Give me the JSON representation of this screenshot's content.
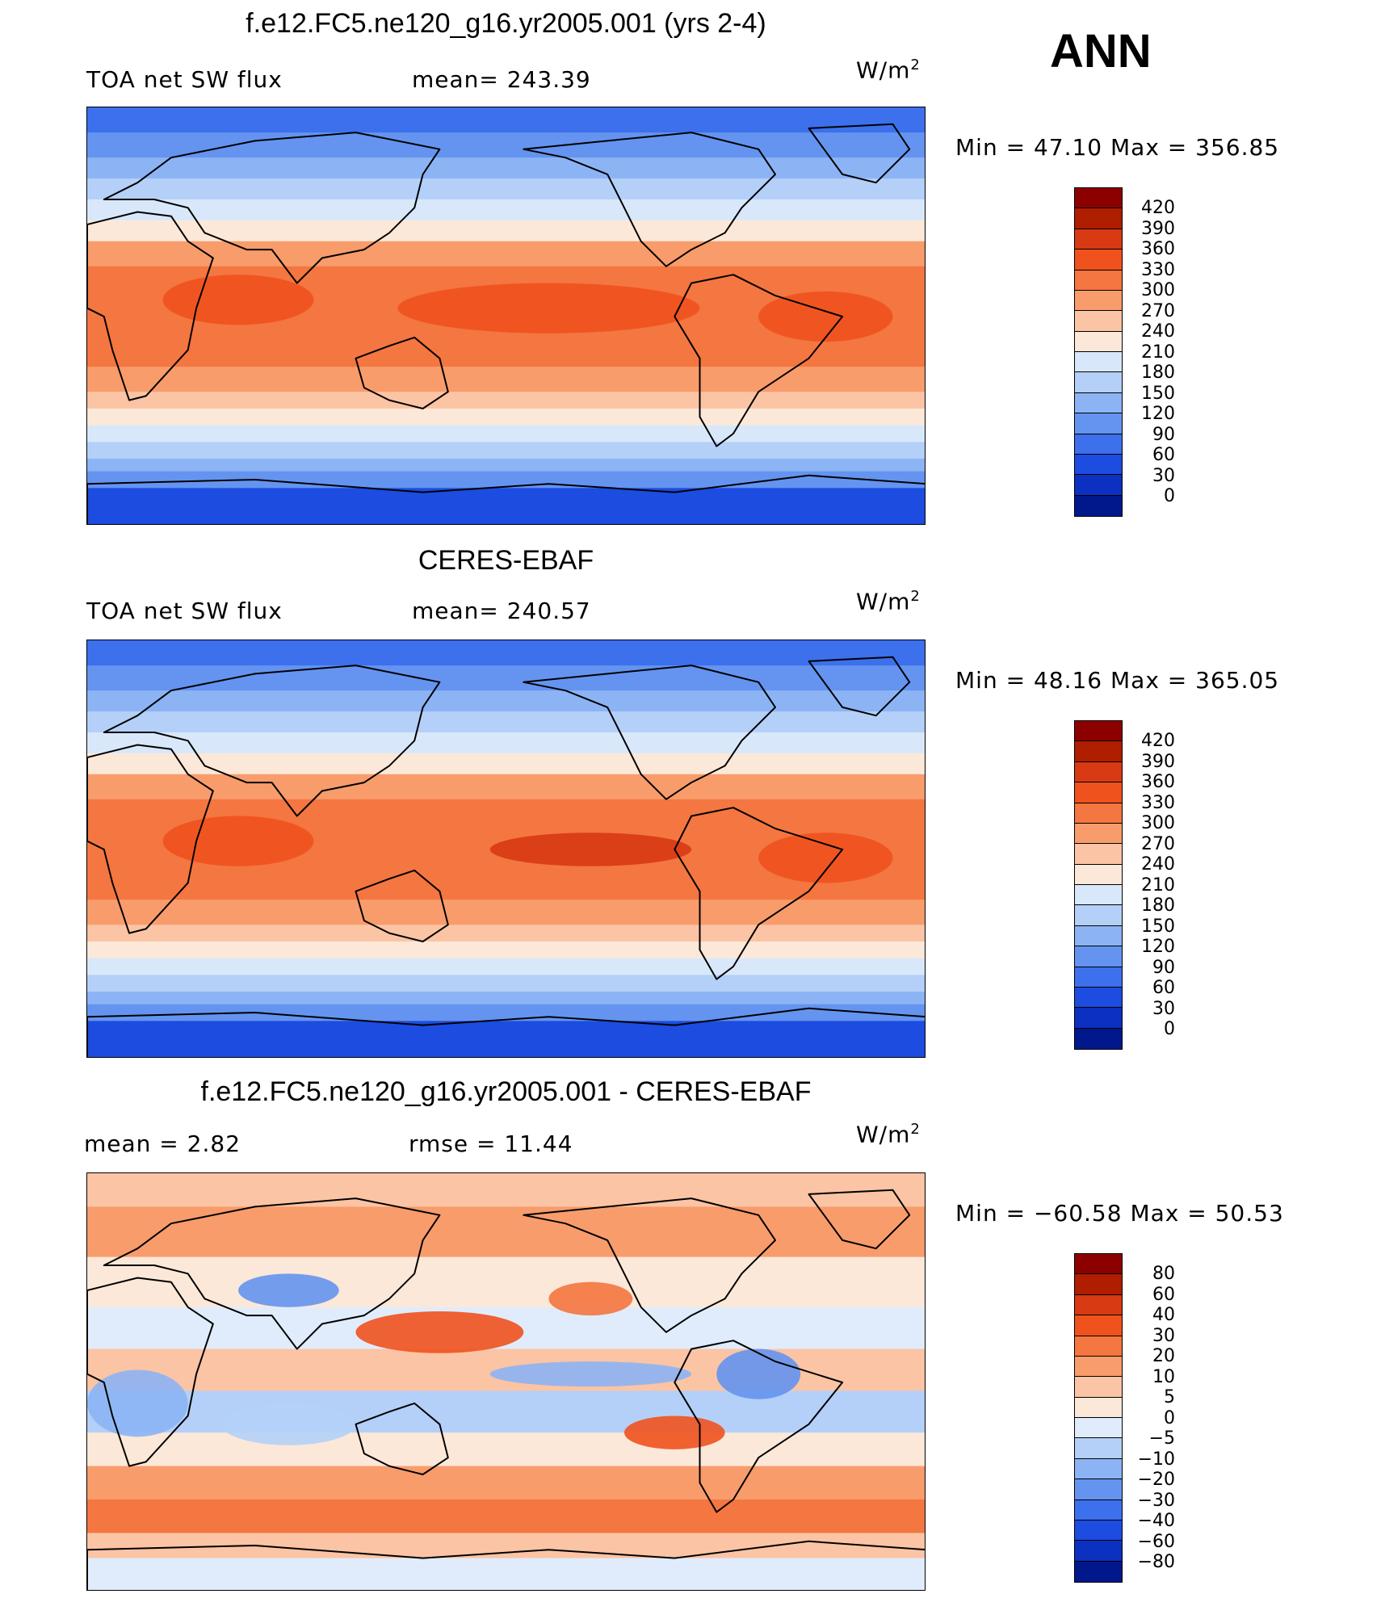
{
  "season": "ANN",
  "panels": [
    {
      "title": "f.e12.FC5.ne120_g16.yr2005.001 (yrs 2-4)",
      "variable": "TOA net SW flux",
      "stat": "mean=  243.39",
      "units": "W/m",
      "units_exp": "2",
      "minmax": "Min  =    47.10  Max  =  356.85",
      "kind": "abs"
    },
    {
      "title": "CERES-EBAF",
      "variable": "TOA net SW flux",
      "stat": "mean=  240.57",
      "units": "W/m",
      "units_exp": "2",
      "minmax": "Min  =    48.16  Max  =  365.05",
      "kind": "abs"
    },
    {
      "title": "f.e12.FC5.ne120_g16.yr2005.001 - CERES-EBAF",
      "variable": "mean  =     2.82",
      "stat": "rmse  =    11.44",
      "units": "W/m",
      "units_exp": "2",
      "minmax": "Min  = −60.58  Max  =    50.53",
      "kind": "diff"
    }
  ],
  "colorbars": {
    "abs": {
      "labels": [
        "420",
        "390",
        "360",
        "330",
        "300",
        "270",
        "240",
        "210",
        "180",
        "150",
        "120",
        "90",
        "60",
        "30",
        "0"
      ],
      "colors": [
        "#8c0000",
        "#b01e00",
        "#d83a14",
        "#f0521e",
        "#f47640",
        "#f89c6c",
        "#fbc4a4",
        "#fce8d8",
        "#d8e8fa",
        "#b4d0f8",
        "#8cb4f4",
        "#6494f0",
        "#3c70ec",
        "#1c4ce0",
        "#0c30c0",
        "#00188c"
      ]
    },
    "diff": {
      "labels": [
        "80",
        "60",
        "40",
        "30",
        "20",
        "10",
        "5",
        "0",
        "−5",
        "−10",
        "−20",
        "−30",
        "−40",
        "−60",
        "−80"
      ],
      "colors": [
        "#8c0000",
        "#b01e00",
        "#d83a14",
        "#f0521e",
        "#f47640",
        "#f89c6c",
        "#fbc4a4",
        "#fce8d8",
        "#e0ecfb",
        "#b4d0f8",
        "#8cb4f4",
        "#6494f0",
        "#3c70ec",
        "#1c4ce0",
        "#0c30c0",
        "#00188c"
      ]
    }
  }
}
